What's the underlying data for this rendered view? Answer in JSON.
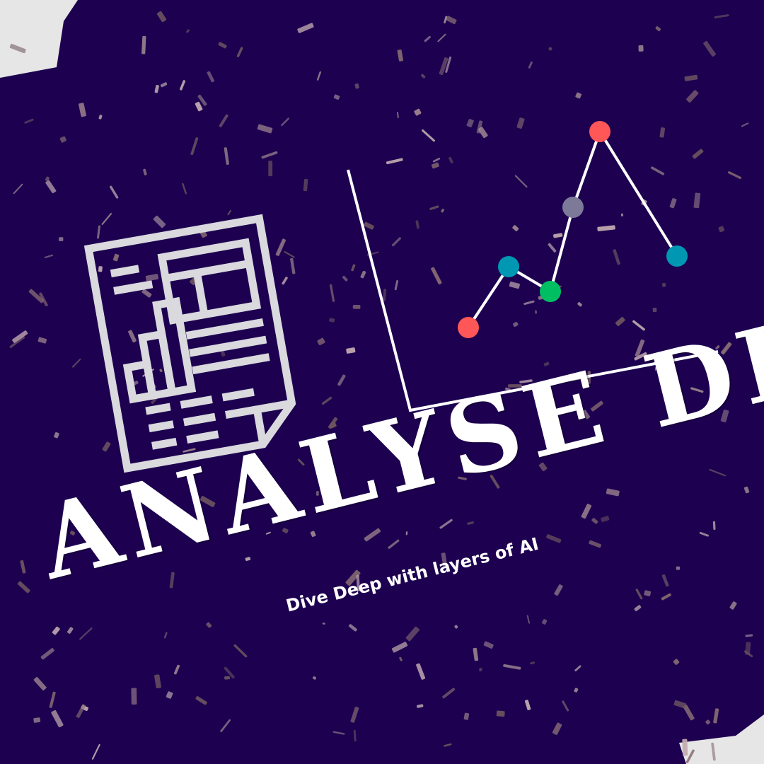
{
  "poster": {
    "title": "ANALYSE DEEP",
    "subtitle": "Dive Deep with layers of AI"
  },
  "colors": {
    "background": "#1d0150",
    "paper": "#e6e6e6",
    "icon_stroke": "#d9d9de",
    "chart_axis": "#ffffff",
    "confetti": "#8a6f74",
    "dot_red": "#ff5757",
    "dot_teal": "#0097b2",
    "dot_green": "#00bf63",
    "dot_gray": "#7d7a99"
  },
  "icons": {
    "report": "report-document-icon",
    "chart": "line-chart-icon"
  }
}
